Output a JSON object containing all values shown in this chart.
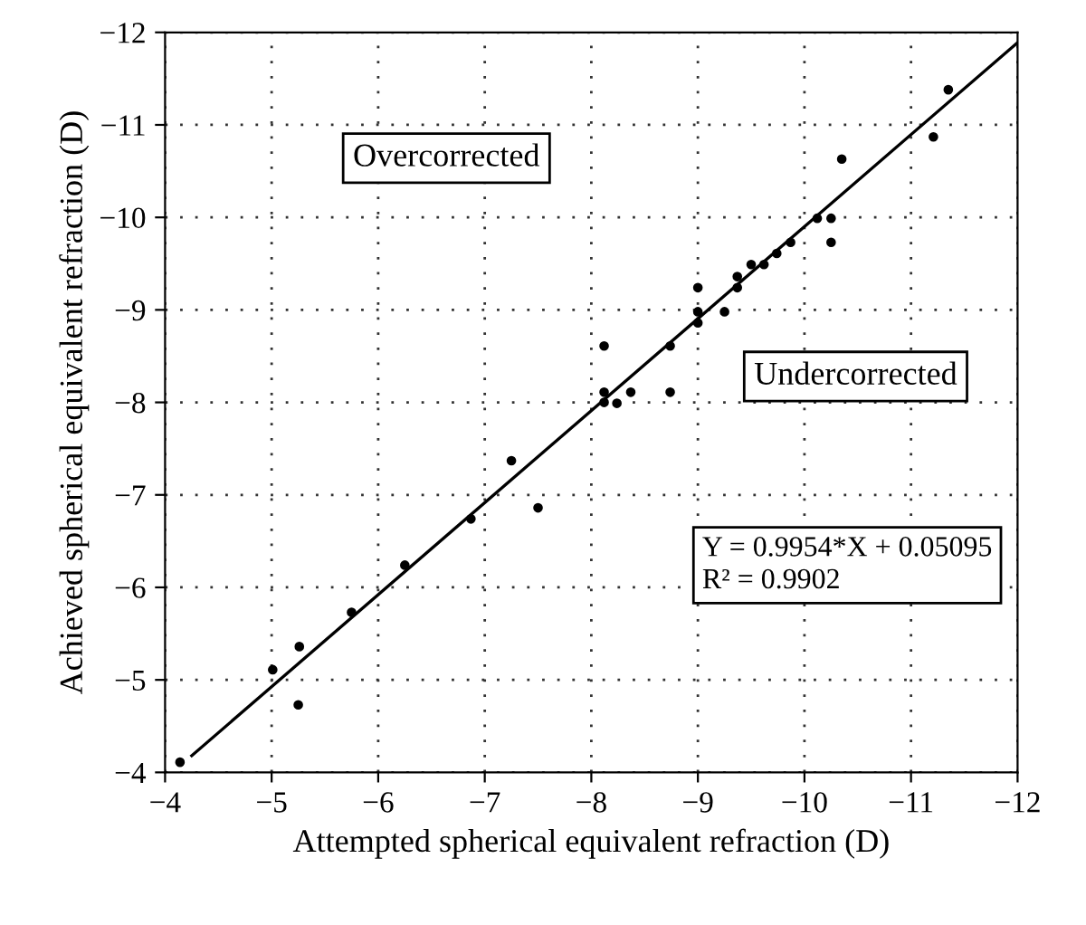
{
  "chart_data": {
    "type": "scatter",
    "xlabel": "Attempted spherical equivalent refraction (D)",
    "ylabel": "Achieved spherical equivalent refraction (D)",
    "xlim": [
      -4,
      -12
    ],
    "ylim": [
      -4,
      -12
    ],
    "xticks": [
      -4,
      -5,
      -6,
      -7,
      -8,
      -9,
      -10,
      -11,
      -12
    ],
    "yticks": [
      -4,
      -5,
      -6,
      -7,
      -8,
      -9,
      -10,
      -11,
      -12
    ],
    "grid": true,
    "marker": "circle",
    "series": [
      {
        "color": "#000000",
        "x": [
          -4.14,
          -5.01,
          -5.26,
          -5.25,
          -5.75,
          -6.25,
          -6.87,
          -7.25,
          -7.5,
          -8.12,
          -8.12,
          -8.12,
          -8.24,
          -8.37,
          -8.74,
          -8.74,
          -9.0,
          -9.0,
          -9.0,
          -9.25,
          -9.37,
          -9.37,
          -9.5,
          -9.62,
          -9.74,
          -9.87,
          -10.12,
          -10.25,
          -10.25,
          -10.35,
          -11.21,
          -11.35
        ],
        "values": [
          -4.11,
          -5.11,
          -5.36,
          -4.73,
          -5.73,
          -6.24,
          -6.74,
          -7.37,
          -6.86,
          -8.61,
          -8.11,
          -8.0,
          -7.99,
          -8.11,
          -8.61,
          -8.11,
          -9.24,
          -8.98,
          -8.86,
          -8.98,
          -9.24,
          -9.36,
          -9.49,
          -9.49,
          -9.61,
          -9.73,
          -9.99,
          -9.99,
          -9.73,
          -10.63,
          -10.87,
          -11.38
        ]
      },
      {
        "type": "line",
        "color": "#000000",
        "line_style": "solid",
        "marker": "none",
        "x": [
          -4.25,
          -12
        ],
        "values": [
          -4.18,
          -11.89
        ]
      }
    ],
    "annotations": [
      "Overcorrected",
      "Undercorrected",
      "Y = 0.9954*X + 0.05095\nR² = 0.9902"
    ]
  }
}
